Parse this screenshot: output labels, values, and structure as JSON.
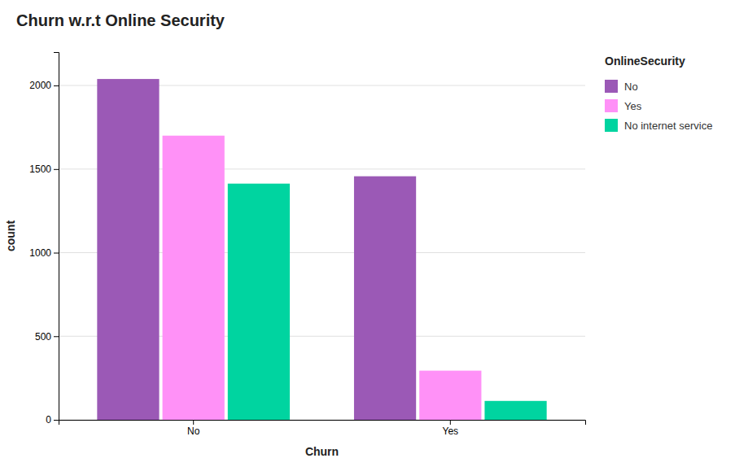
{
  "chart_data": {
    "type": "bar",
    "title": "Churn w.r.t Online Security",
    "xlabel": "Churn",
    "ylabel": "count",
    "categories": [
      "No",
      "Yes"
    ],
    "series": [
      {
        "name": "No",
        "color": "#9b59b6",
        "values": [
          2039,
          1457
        ]
      },
      {
        "name": "Yes",
        "color": "#ff91f7",
        "values": [
          1700,
          294
        ]
      },
      {
        "name": "No internet service",
        "color": "#00d4a0",
        "values": [
          1413,
          113
        ]
      }
    ],
    "legend_title": "OnlineSecurity",
    "legend": "right",
    "ylim": [
      0,
      2200
    ],
    "yticks": [
      0,
      500,
      1000,
      1500,
      2000
    ],
    "grid": true
  }
}
